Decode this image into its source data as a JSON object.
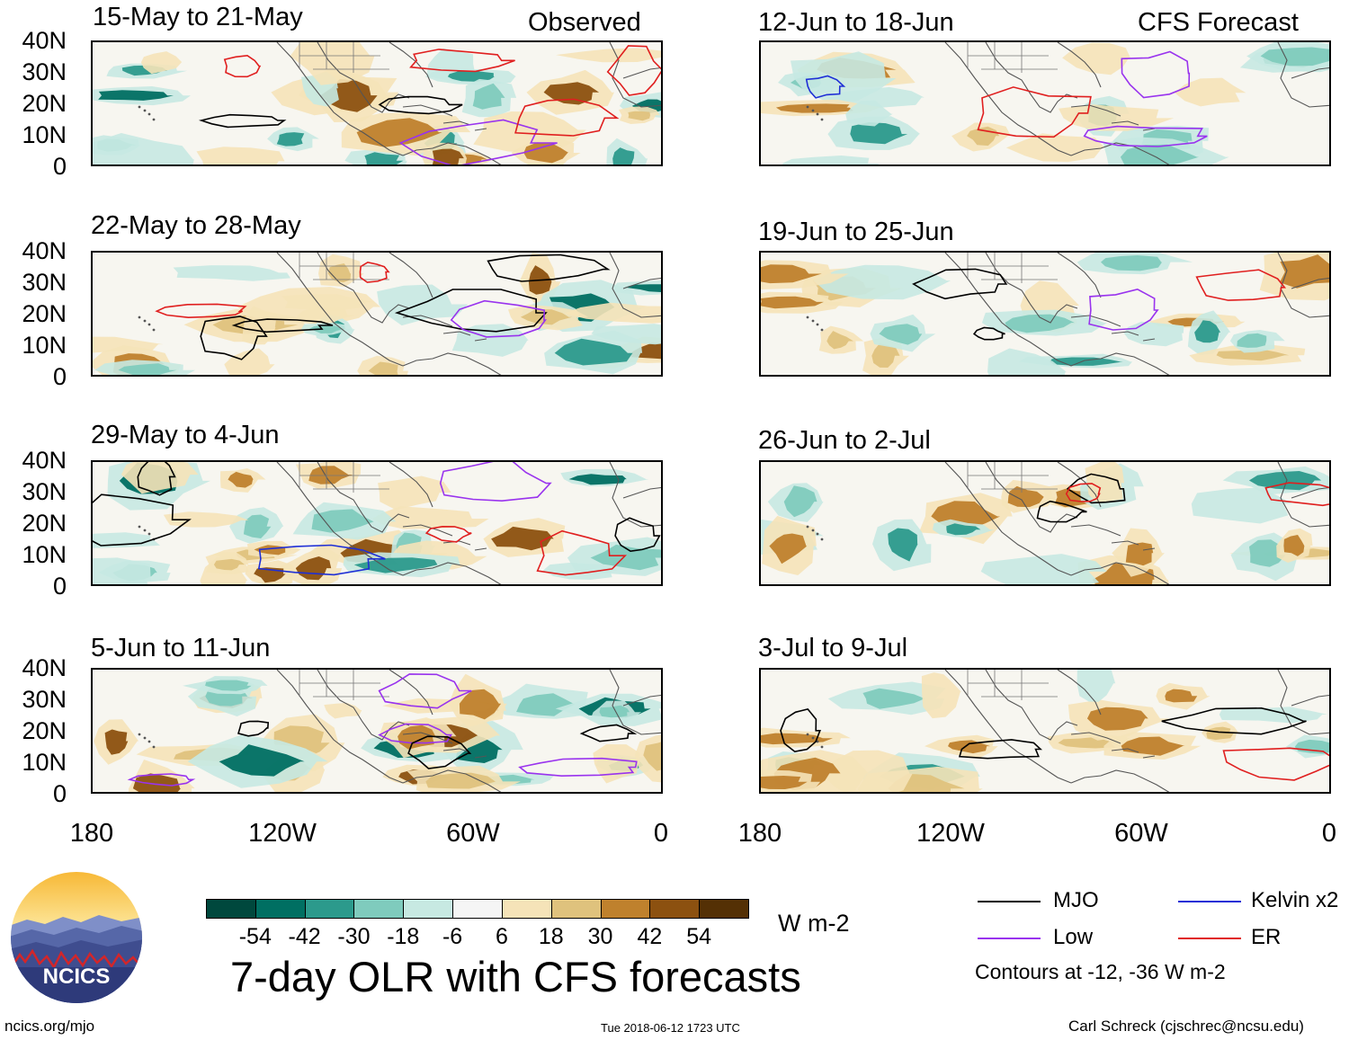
{
  "headers": {
    "left": "Observed",
    "right": "CFS Forecast"
  },
  "observed_panels": [
    {
      "title": "15-May to 21-May"
    },
    {
      "title": "22-May to 28-May"
    },
    {
      "title": "29-May to 4-Jun"
    },
    {
      "title": "5-Jun to 11-Jun"
    }
  ],
  "forecast_panels": [
    {
      "title": "12-Jun to 18-Jun"
    },
    {
      "title": "19-Jun to 25-Jun"
    },
    {
      "title": "26-Jun to 2-Jul"
    },
    {
      "title": "3-Jul to 9-Jul"
    }
  ],
  "y_axis_labels": [
    "40N",
    "30N",
    "20N",
    "10N",
    "0"
  ],
  "x_axis_labels": [
    "180",
    "120W",
    "60W",
    "0"
  ],
  "colorbar": {
    "colors": [
      "#00483d",
      "#006f62",
      "#2c9a8c",
      "#7fcbbd",
      "#c7e9e2",
      "#f5f5f5",
      "#f5e3b8",
      "#dfc27d",
      "#bf812d",
      "#8c5110",
      "#543005"
    ],
    "tick_labels": [
      "-54",
      "-42",
      "-30",
      "-18",
      "-6",
      "6",
      "18",
      "30",
      "42",
      "54"
    ],
    "units": "W m-2"
  },
  "main_title": "7-day OLR with CFS forecasts",
  "legend": {
    "items": [
      {
        "label": "MJO",
        "color": "#000000"
      },
      {
        "label": "Kelvin x2",
        "color": "#1f2fd6"
      },
      {
        "label": "Low",
        "color": "#9933ee"
      },
      {
        "label": "ER",
        "color": "#e01f1f"
      }
    ],
    "contour_note": "Contours at -12, -36 W m-2"
  },
  "logo": {
    "text": "NCICS"
  },
  "footer": {
    "left": "ncics.org/mjo",
    "center": "Tue 2018-06-12 1723 UTC",
    "right": "Carl Schreck (cjschrec@ncsu.edu)"
  }
}
